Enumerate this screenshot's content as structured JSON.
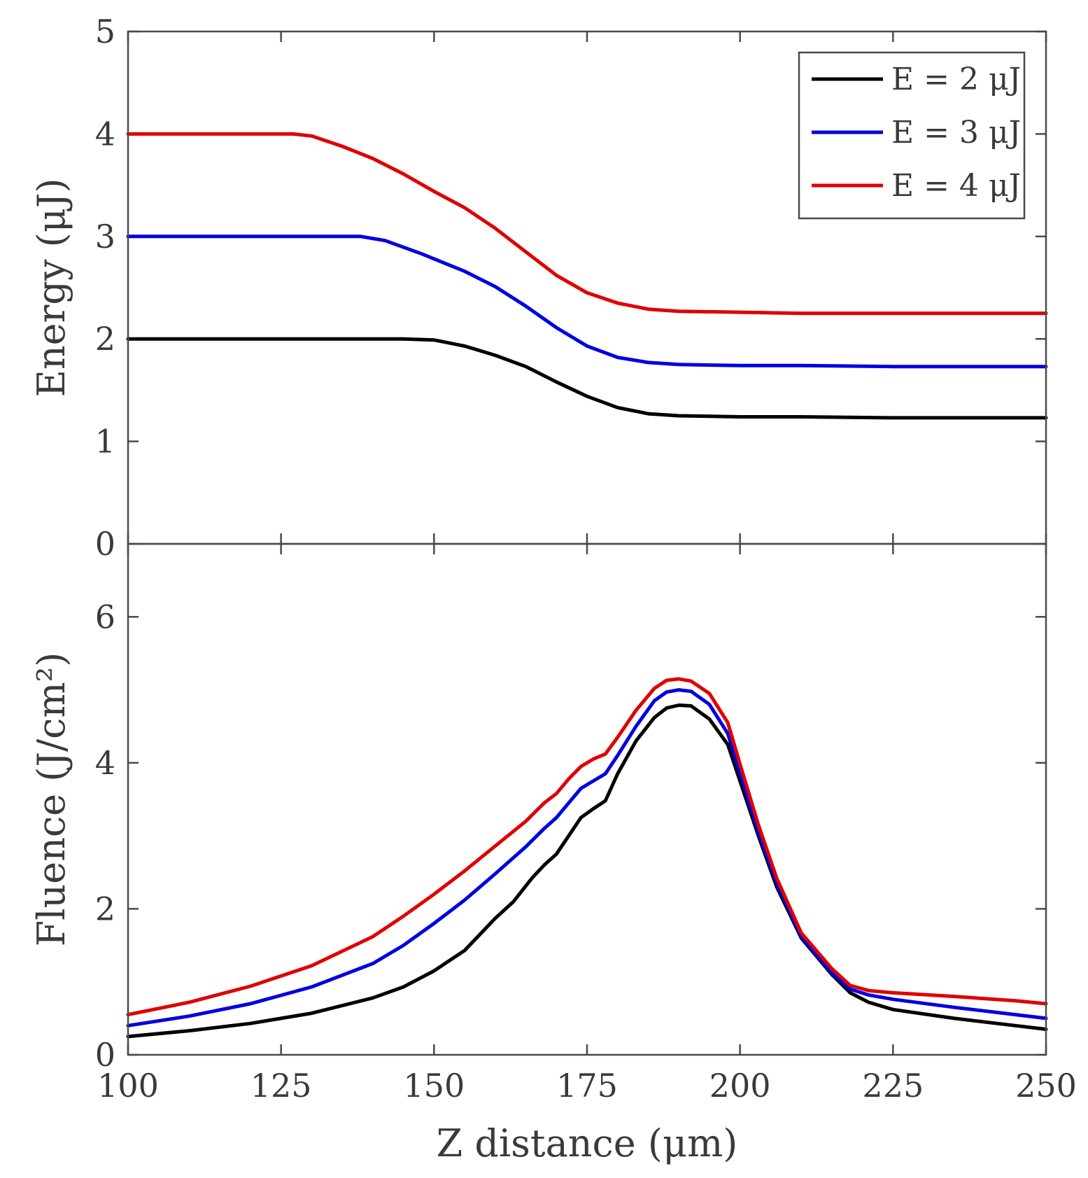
{
  "chart_data": [
    {
      "type": "line",
      "panel": "top",
      "ylabel": "Energy (μJ)",
      "xlim": [
        100,
        250
      ],
      "ylim": [
        0,
        5
      ],
      "xticks": [
        100,
        125,
        150,
        175,
        200,
        225,
        250
      ],
      "yticks": [
        0,
        1,
        2,
        3,
        4,
        5
      ],
      "legend": "top-right",
      "series": [
        {
          "name": "E = 2 μJ",
          "color": "#000000",
          "points": [
            [
              100,
              2.0
            ],
            [
              110,
              2.0
            ],
            [
              120,
              2.0
            ],
            [
              130,
              2.0
            ],
            [
              140,
              2.0
            ],
            [
              145,
              2.0
            ],
            [
              150,
              1.99
            ],
            [
              155,
              1.93
            ],
            [
              160,
              1.84
            ],
            [
              165,
              1.73
            ],
            [
              170,
              1.58
            ],
            [
              175,
              1.44
            ],
            [
              180,
              1.33
            ],
            [
              185,
              1.27
            ],
            [
              190,
              1.25
            ],
            [
              200,
              1.24
            ],
            [
              210,
              1.24
            ],
            [
              225,
              1.23
            ],
            [
              250,
              1.23
            ]
          ]
        },
        {
          "name": "E = 3 μJ",
          "color": "#0000e0",
          "points": [
            [
              100,
              3.0
            ],
            [
              110,
              3.0
            ],
            [
              120,
              3.0
            ],
            [
              130,
              3.0
            ],
            [
              138,
              3.0
            ],
            [
              142,
              2.96
            ],
            [
              148,
              2.83
            ],
            [
              155,
              2.66
            ],
            [
              160,
              2.51
            ],
            [
              165,
              2.32
            ],
            [
              170,
              2.11
            ],
            [
              175,
              1.93
            ],
            [
              180,
              1.82
            ],
            [
              185,
              1.77
            ],
            [
              190,
              1.75
            ],
            [
              200,
              1.74
            ],
            [
              210,
              1.74
            ],
            [
              225,
              1.73
            ],
            [
              250,
              1.73
            ]
          ]
        },
        {
          "name": "E = 4 μJ",
          "color": "#e00000",
          "points": [
            [
              100,
              4.0
            ],
            [
              110,
              4.0
            ],
            [
              120,
              4.0
            ],
            [
              127,
              4.0
            ],
            [
              130,
              3.98
            ],
            [
              135,
              3.88
            ],
            [
              140,
              3.76
            ],
            [
              145,
              3.61
            ],
            [
              150,
              3.44
            ],
            [
              155,
              3.28
            ],
            [
              160,
              3.08
            ],
            [
              165,
              2.85
            ],
            [
              170,
              2.62
            ],
            [
              175,
              2.45
            ],
            [
              180,
              2.35
            ],
            [
              185,
              2.29
            ],
            [
              190,
              2.27
            ],
            [
              200,
              2.26
            ],
            [
              210,
              2.25
            ],
            [
              225,
              2.25
            ],
            [
              250,
              2.25
            ]
          ]
        }
      ]
    },
    {
      "type": "line",
      "panel": "bottom",
      "ylabel": "Fluence (J/cm²)",
      "xlabel": "Z distance (μm)",
      "xlim": [
        100,
        250
      ],
      "ylim": [
        0,
        7
      ],
      "xticks": [
        100,
        125,
        150,
        175,
        200,
        225,
        250
      ],
      "yticks": [
        0,
        2,
        4,
        6
      ],
      "series": [
        {
          "name": "E = 2 μJ",
          "color": "#000000",
          "points": [
            [
              100,
              0.25
            ],
            [
              110,
              0.33
            ],
            [
              120,
              0.43
            ],
            [
              130,
              0.57
            ],
            [
              140,
              0.78
            ],
            [
              145,
              0.93
            ],
            [
              150,
              1.15
            ],
            [
              155,
              1.43
            ],
            [
              160,
              1.87
            ],
            [
              163,
              2.1
            ],
            [
              166,
              2.42
            ],
            [
              168,
              2.6
            ],
            [
              170,
              2.75
            ],
            [
              172,
              3.0
            ],
            [
              174,
              3.25
            ],
            [
              176,
              3.37
            ],
            [
              178,
              3.48
            ],
            [
              180,
              3.85
            ],
            [
              183,
              4.3
            ],
            [
              186,
              4.62
            ],
            [
              188,
              4.75
            ],
            [
              190,
              4.79
            ],
            [
              192,
              4.78
            ],
            [
              195,
              4.6
            ],
            [
              198,
              4.25
            ],
            [
              200,
              3.75
            ],
            [
              203,
              3.0
            ],
            [
              206,
              2.3
            ],
            [
              210,
              1.6
            ],
            [
              215,
              1.1
            ],
            [
              218,
              0.85
            ],
            [
              221,
              0.72
            ],
            [
              225,
              0.62
            ],
            [
              235,
              0.5
            ],
            [
              245,
              0.4
            ],
            [
              250,
              0.35
            ]
          ]
        },
        {
          "name": "E = 3 μJ",
          "color": "#0000e0",
          "points": [
            [
              100,
              0.4
            ],
            [
              110,
              0.53
            ],
            [
              120,
              0.7
            ],
            [
              130,
              0.93
            ],
            [
              140,
              1.25
            ],
            [
              145,
              1.5
            ],
            [
              150,
              1.8
            ],
            [
              155,
              2.12
            ],
            [
              160,
              2.48
            ],
            [
              165,
              2.85
            ],
            [
              168,
              3.1
            ],
            [
              170,
              3.25
            ],
            [
              172,
              3.45
            ],
            [
              174,
              3.65
            ],
            [
              176,
              3.75
            ],
            [
              178,
              3.85
            ],
            [
              180,
              4.1
            ],
            [
              183,
              4.5
            ],
            [
              186,
              4.85
            ],
            [
              188,
              4.97
            ],
            [
              190,
              5.0
            ],
            [
              192,
              4.98
            ],
            [
              195,
              4.8
            ],
            [
              198,
              4.4
            ],
            [
              200,
              3.85
            ],
            [
              203,
              3.05
            ],
            [
              206,
              2.35
            ],
            [
              210,
              1.62
            ],
            [
              215,
              1.12
            ],
            [
              218,
              0.9
            ],
            [
              221,
              0.82
            ],
            [
              225,
              0.76
            ],
            [
              235,
              0.65
            ],
            [
              245,
              0.55
            ],
            [
              250,
              0.5
            ]
          ]
        },
        {
          "name": "E = 4 μJ",
          "color": "#e00000",
          "points": [
            [
              100,
              0.55
            ],
            [
              110,
              0.72
            ],
            [
              120,
              0.94
            ],
            [
              130,
              1.22
            ],
            [
              140,
              1.62
            ],
            [
              145,
              1.9
            ],
            [
              150,
              2.2
            ],
            [
              155,
              2.52
            ],
            [
              160,
              2.86
            ],
            [
              165,
              3.2
            ],
            [
              168,
              3.45
            ],
            [
              170,
              3.58
            ],
            [
              172,
              3.78
            ],
            [
              174,
              3.95
            ],
            [
              176,
              4.05
            ],
            [
              178,
              4.12
            ],
            [
              180,
              4.35
            ],
            [
              183,
              4.72
            ],
            [
              186,
              5.02
            ],
            [
              188,
              5.13
            ],
            [
              190,
              5.15
            ],
            [
              192,
              5.12
            ],
            [
              195,
              4.95
            ],
            [
              198,
              4.55
            ],
            [
              200,
              3.98
            ],
            [
              203,
              3.15
            ],
            [
              206,
              2.42
            ],
            [
              210,
              1.67
            ],
            [
              215,
              1.18
            ],
            [
              218,
              0.95
            ],
            [
              221,
              0.88
            ],
            [
              225,
              0.85
            ],
            [
              235,
              0.8
            ],
            [
              245,
              0.74
            ],
            [
              250,
              0.7
            ]
          ]
        }
      ]
    }
  ]
}
